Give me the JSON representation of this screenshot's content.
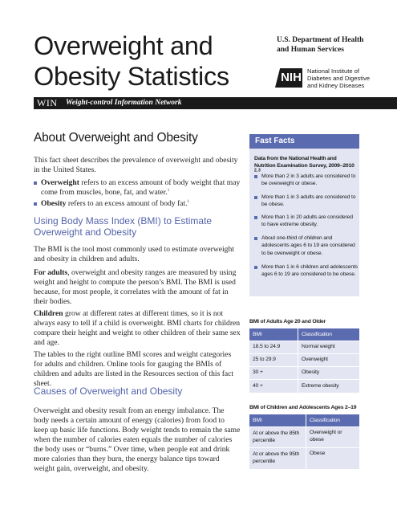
{
  "header": {
    "title_line1": "Overweight and",
    "title_line2": "Obesity Statistics",
    "department_line1": "U.S. Department of Health",
    "department_line2": "and Human Services",
    "nih_logo": "NIH",
    "institute_line1": "National Institute of",
    "institute_line2": "Diabetes and Digestive",
    "institute_line3": "and Kidney Diseases",
    "win_logo": "WIN",
    "win_subtitle": "Weight-control Information Network"
  },
  "main": {
    "heading": "About Overweight and Obesity",
    "intro": "This fact sheet describes the prevalence of overweight and obesity in the United States.",
    "bullets": [
      {
        "term": "Overweight",
        "text": " refers to an excess amount of body weight that may come from muscles, bone, fat, and water.",
        "ref": "1"
      },
      {
        "term": "Obesity",
        "text": " refers to an excess amount of body fat.",
        "ref": "1"
      }
    ],
    "bmi_heading": "Using Body Mass Index (BMI) to Estimate Overweight and Obesity",
    "bmi_p1": "The BMI is the tool most commonly used to estimate overweight and obesity in children and adults.",
    "bmi_p2_term": "For adults",
    "bmi_p2": ", overweight and obesity ranges are measured by using weight and height to compute the person’s BMI. The BMI is used because, for most people, it correlates with the amount of fat in their bodies.",
    "bmi_p3_term": "Children",
    "bmi_p3": " grow at different rates at different times, so it is not always easy to tell if a child is overweight. BMI charts for children compare their height and weight to other children of their same sex and age.",
    "bmi_p4": "The tables to the right outline BMI scores and weight categories for adults and children. Online tools for gauging the BMIs of children and adults are listed in the Resources section of this fact sheet.",
    "causes_heading": "Causes of Overweight and Obesity",
    "causes_p": "Overweight and obesity result from an energy imbalance. The body needs a certain amount of energy (calories) from food to keep up basic life functions. Body weight tends to remain the same when the number of calories eaten equals the number of calories the body uses or “burns.” Over time, when people eat and drink more calories than they burn, the energy balance tips toward weight gain, overweight, and obesity."
  },
  "fast_facts": {
    "title": "Fast Facts",
    "source": "Data from the National Health and Nutrition Examination Survey, 2009–2010",
    "source_ref": "2, 3",
    "items": [
      "More than 2 in 3 adults are considered to be overweight or obese.",
      "More than 1 in 3 adults are considered to be obese.",
      "More than 1 in 20 adults are considered to have extreme obesity.",
      "About one-third of children and adolescents ages 6 to 19 are considered to be overweight or obese.",
      "More than 1 in 6 children and adolescents ages 6 to 19 are considered to be obese."
    ]
  },
  "adult_table": {
    "caption": "BMI of Adults Age 20 and Older",
    "headers": [
      "BMI",
      "Classification"
    ],
    "rows": [
      [
        "18.5 to 24.9",
        "Normal weight"
      ],
      [
        "25 to 29.9",
        "Overweight"
      ],
      [
        "30 +",
        "Obesity"
      ],
      [
        "40 +",
        "Extreme obesity"
      ]
    ]
  },
  "child_table": {
    "caption": "BMI of Children and Adolescents Ages 2–19",
    "headers": [
      "BMI",
      "Classification"
    ],
    "rows": [
      [
        "At or above the 85th percentile",
        "Overweight or obese"
      ],
      [
        "At or above the 95th percentile",
        "Obese"
      ]
    ]
  },
  "colors": {
    "accent": "#5a6bb0",
    "accent_text": "#5464a9",
    "panel_bg": "#e3e5f2",
    "banner_bg": "#1a1a1a"
  }
}
